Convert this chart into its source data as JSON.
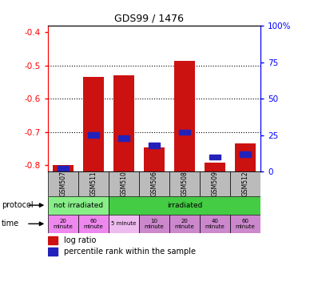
{
  "title": "GDS99 / 1476",
  "samples": [
    "GSM507",
    "GSM511",
    "GSM510",
    "GSM506",
    "GSM508",
    "GSM509",
    "GSM512"
  ],
  "log_ratios": [
    -0.8,
    -0.535,
    -0.53,
    -0.748,
    -0.487,
    -0.792,
    -0.735
  ],
  "percentile_ranks": [
    2,
    25,
    23,
    18,
    27,
    10,
    12
  ],
  "ylim_left": [
    -0.82,
    -0.38
  ],
  "ylim_right": [
    0,
    100
  ],
  "left_ticks": [
    -0.8,
    -0.7,
    -0.6,
    -0.5,
    -0.4
  ],
  "right_ticks": [
    0,
    25,
    50,
    75,
    100
  ],
  "right_tick_labels": [
    "0",
    "25",
    "50",
    "75",
    "100%"
  ],
  "bar_color": "#cc1111",
  "dot_color": "#2222bb",
  "time_labels": [
    "20\nminute",
    "60\nminute",
    "5 minute",
    "10\nminute",
    "20\nminute",
    "40\nminute",
    "60\nminute"
  ],
  "protocol_row_color_not": "#88ee88",
  "protocol_row_color_irr": "#44cc44",
  "time_row_color_not": "#ee88ee",
  "time_row_color_irr": "#cc88cc",
  "time_row_color_5min": "#eebbee",
  "sample_bg_color": "#bbbbbb",
  "bg_color": "#ffffff"
}
